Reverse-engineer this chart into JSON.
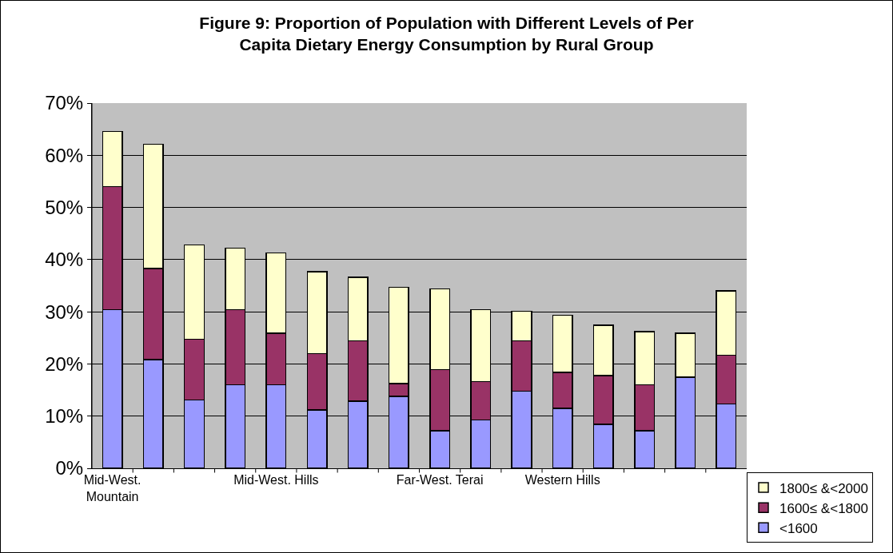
{
  "chart_data": {
    "type": "bar",
    "title": "Figure 9: Proportion of Population with Different Levels of Per Capita Dietary Energy Consumption by Rural Group",
    "categories": [
      "Mid-West.\nMountain",
      null,
      null,
      null,
      "Mid-West. Hills",
      null,
      null,
      null,
      "Far-West. Terai",
      null,
      null,
      "Western Hills",
      null,
      null,
      null,
      null
    ],
    "stacked": true,
    "series": [
      {
        "name": "<1600",
        "color": "#9999ff",
        "values": [
          30.4,
          20.8,
          13.1,
          16.0,
          16.0,
          11.2,
          12.9,
          13.8,
          7.2,
          9.3,
          14.8,
          11.5,
          8.4,
          7.2,
          17.5,
          12.3
        ]
      },
      {
        "name": "1600≤ &<1800",
        "color": "#993366",
        "values": [
          23.6,
          17.5,
          11.6,
          14.4,
          9.9,
          10.8,
          11.5,
          2.4,
          11.7,
          7.3,
          9.6,
          6.9,
          9.4,
          8.8,
          0,
          9.4
        ]
      },
      {
        "name": "1800≤ &<2000",
        "color": "#ffffcc",
        "values": [
          10.6,
          23.8,
          18.1,
          11.8,
          15.4,
          15.7,
          12.2,
          18.5,
          15.5,
          13.8,
          5.7,
          10.9,
          9.6,
          10.2,
          8.4,
          12.3
        ]
      }
    ],
    "ylim": [
      0,
      70
    ],
    "yticks": [
      {
        "value": 0,
        "label": "0%"
      },
      {
        "value": 10,
        "label": "10%"
      },
      {
        "value": 20,
        "label": "20%"
      },
      {
        "value": 30,
        "label": "30%"
      },
      {
        "value": 40,
        "label": "40%"
      },
      {
        "value": 50,
        "label": "50%"
      },
      {
        "value": 60,
        "label": "60%"
      },
      {
        "value": 70,
        "label": "70%"
      }
    ],
    "grid": "y",
    "legend": "bottom right"
  }
}
